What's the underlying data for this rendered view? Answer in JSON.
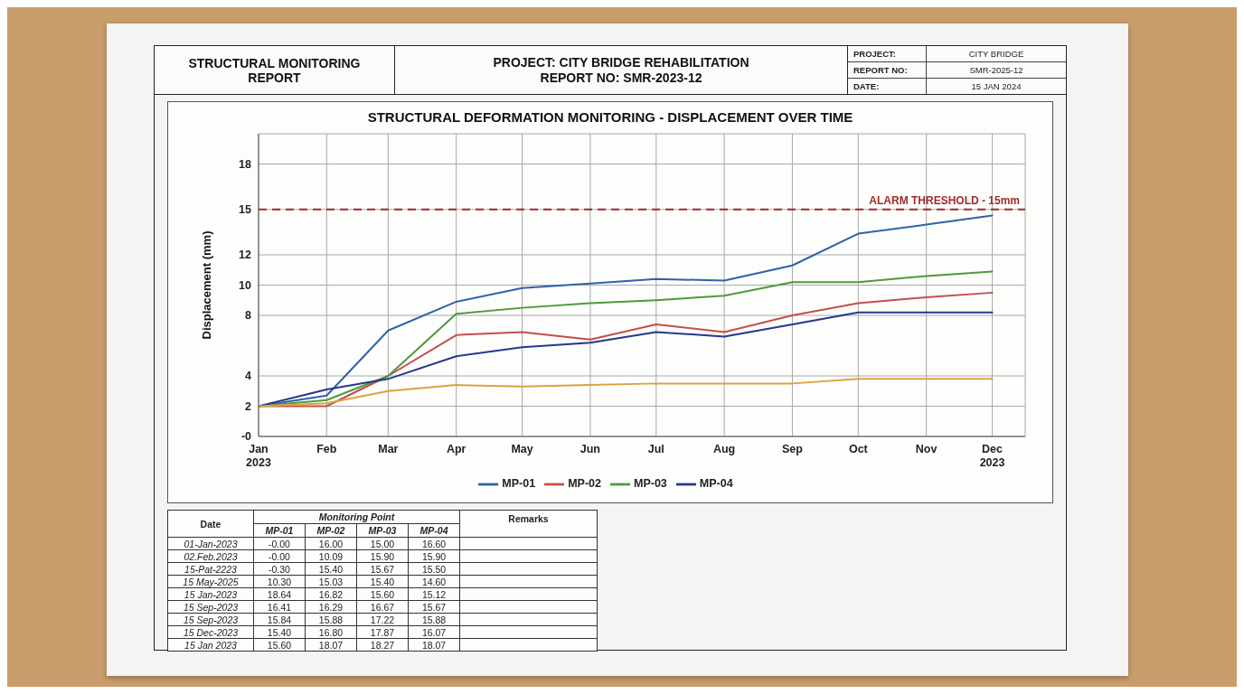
{
  "chart_data": [
    {
      "type": "line",
      "title": "STRUCTURAL DEFORMATION MONITORING - DISPLACEMENT OVER TIME",
      "ylabel": "Displacement (mm)",
      "annotations": [
        "STRUCTURAL MONITORING REPORT",
        "PROJECT: CITY BRIDGE REHABILITATION",
        "REPORT NO: SMR-2023-12",
        "PROJECT:",
        "CITY BRIDGE",
        "REPORT NO:",
        "SMR-2025-12",
        "DATE:",
        "15 JAN 2024"
      ],
      "x": [
        "2023-01",
        "2023-02",
        "2023-03",
        "2023-04",
        "2023-05",
        "2023-06",
        "2023-07",
        "2023-08",
        "2023-09",
        "2023-10",
        "2023-11",
        "2023-12"
      ],
      "series": [
        {
          "name": "MP-01",
          "color": "#2f62a8",
          "values": [
            2.0,
            2.7,
            7.0,
            8.9,
            9.8,
            10.1,
            10.4,
            10.3,
            11.3,
            13.4,
            14.0,
            14.6
          ]
        },
        {
          "name": "MP-02",
          "color": "#c0504d",
          "values": [
            2.0,
            2.0,
            4.0,
            6.7,
            6.9,
            6.4,
            7.4,
            6.9,
            8.0,
            8.8,
            9.2,
            9.5
          ]
        },
        {
          "name": "MP-03",
          "color": "#4e9a3a",
          "values": [
            2.0,
            2.4,
            4.0,
            8.1,
            8.5,
            8.8,
            9.0,
            9.3,
            10.2,
            10.2,
            10.6,
            10.9
          ]
        },
        {
          "name": "MP-04",
          "color": "#26388a",
          "values": [
            2.0,
            3.1,
            3.8,
            5.3,
            5.9,
            6.2,
            6.9,
            6.6,
            7.4,
            8.2,
            8.2,
            8.2
          ]
        },
        {
          "color": "#d9a441",
          "values": [
            2.0,
            2.2,
            3.0,
            3.4,
            3.3,
            3.4,
            3.5,
            3.5,
            3.5,
            3.8,
            3.8,
            3.8
          ]
        }
      ],
      "xlim": [
        "2023-01",
        "2023-12-16"
      ],
      "xticks": [
        {
          "value": "2023-01",
          "label": "Jan 2023"
        },
        {
          "value": "2023-02",
          "label": "Feb"
        },
        {
          "value": "2023-03",
          "label": "Mar"
        },
        {
          "value": "2023-04",
          "label": "Apr"
        },
        {
          "value": "2023-05",
          "label": "May"
        },
        {
          "value": "2023-06",
          "label": "Jun"
        },
        {
          "value": "2023-07",
          "label": "Jul"
        },
        {
          "value": "2023-08",
          "label": "Aug"
        },
        {
          "value": "2023-09",
          "label": "Sep"
        },
        {
          "value": "2023-10",
          "label": "Oct"
        },
        {
          "value": "2023-11",
          "label": "Nov"
        },
        {
          "value": "2023-12",
          "label": "Dec 2023"
        }
      ],
      "ylim": [
        0,
        20
      ],
      "yticks": [
        {
          "value": 0,
          "label": "-0"
        },
        2,
        4,
        8,
        10,
        12,
        15,
        18
      ],
      "ref_lines": [
        {
          "axis": "y",
          "value": 15,
          "label": "ALARM THRESHOLD - 15mm",
          "color": "#9e2c2a",
          "line_style": "dashed"
        }
      ],
      "grid": true,
      "legend": "bottom",
      "marker": "none",
      "line_style": "solid"
    },
    {
      "type": "other",
      "title": "Monitoring Point",
      "annotations": [
        "Date",
        "Remarks"
      ],
      "categories": [
        "MP-01",
        "MP-02",
        "MP-03",
        "MP-04"
      ],
      "y_categories": [
        "01-Jan-2023",
        "02.Feb.2023",
        "15-Pat-2223",
        "15 May-2025",
        "15 Jan-2023",
        "15 Sep-2023",
        "15 Sep-2023",
        "15 Dec-2023",
        "15 Jan 2023"
      ],
      "cell_labels": [
        [
          "-0.00",
          "16.00",
          "15.00",
          "16.60"
        ],
        [
          "-0.00",
          "10.09",
          "15.90",
          "15.90"
        ],
        [
          "-0.30",
          "15.40",
          "15.67",
          "15.50"
        ],
        [
          "10.30",
          "15.03",
          "15.40",
          "14.60"
        ],
        [
          "18.64",
          "16.82",
          "15.60",
          "15.12"
        ],
        [
          "16.41",
          "16.29",
          "16.67",
          "15.67"
        ],
        [
          "15.84",
          "15.88",
          "17.22",
          "15.88"
        ],
        [
          "15.40",
          "16.80",
          "17.87",
          "16.07"
        ],
        [
          "15.60",
          "18.07",
          "18.27",
          "18.07"
        ]
      ]
    }
  ]
}
